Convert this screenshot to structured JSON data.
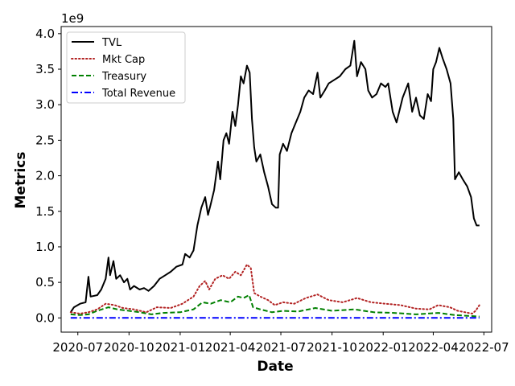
{
  "chart_data": {
    "type": "line",
    "xlabel": "Date",
    "ylabel": "Metrics",
    "y_offset_label": "1e9",
    "xlim": [
      "2020-06-01",
      "2022-07-15"
    ],
    "ylim": [
      -0.2,
      4.1
    ],
    "x_ticks": [
      "2020-07-01",
      "2020-10-01",
      "2021-01-01",
      "2021-04-01",
      "2021-07-01",
      "2021-10-01",
      "2022-01-01",
      "2022-04-01",
      "2022-07-01"
    ],
    "x_tick_labels": [
      "2020-07",
      "2020-10",
      "2021-01",
      "2021-04",
      "2021-07",
      "2021-10",
      "2022-01",
      "2022-04",
      "2022-07"
    ],
    "y_ticks": [
      0.0,
      0.5,
      1.0,
      1.5,
      2.0,
      2.5,
      3.0,
      3.5,
      4.0
    ],
    "y_tick_labels": [
      "0.0",
      "0.5",
      "1.0",
      "1.5",
      "2.0",
      "2.5",
      "3.0",
      "3.5",
      "4.0"
    ],
    "legend_placement": "upper-left",
    "grid": false,
    "series": [
      {
        "name": "TVL",
        "color": "#000000",
        "style": "solid",
        "points": [
          [
            "2020-06-18",
            0.08
          ],
          [
            "2020-06-24",
            0.15
          ],
          [
            "2020-07-05",
            0.2
          ],
          [
            "2020-07-15",
            0.22
          ],
          [
            "2020-07-20",
            0.58
          ],
          [
            "2020-07-24",
            0.3
          ],
          [
            "2020-08-05",
            0.32
          ],
          [
            "2020-08-12",
            0.4
          ],
          [
            "2020-08-20",
            0.55
          ],
          [
            "2020-08-25",
            0.85
          ],
          [
            "2020-08-28",
            0.6
          ],
          [
            "2020-09-03",
            0.8
          ],
          [
            "2020-09-08",
            0.55
          ],
          [
            "2020-09-15",
            0.6
          ],
          [
            "2020-09-22",
            0.5
          ],
          [
            "2020-09-28",
            0.55
          ],
          [
            "2020-10-03",
            0.4
          ],
          [
            "2020-10-10",
            0.45
          ],
          [
            "2020-10-20",
            0.4
          ],
          [
            "2020-10-28",
            0.42
          ],
          [
            "2020-11-05",
            0.38
          ],
          [
            "2020-11-15",
            0.45
          ],
          [
            "2020-11-25",
            0.55
          ],
          [
            "2020-12-05",
            0.6
          ],
          [
            "2020-12-15",
            0.65
          ],
          [
            "2020-12-25",
            0.72
          ],
          [
            "2021-01-05",
            0.75
          ],
          [
            "2021-01-10",
            0.9
          ],
          [
            "2021-01-18",
            0.85
          ],
          [
            "2021-01-25",
            0.95
          ],
          [
            "2021-02-01",
            1.3
          ],
          [
            "2021-02-08",
            1.55
          ],
          [
            "2021-02-15",
            1.7
          ],
          [
            "2021-02-20",
            1.45
          ],
          [
            "2021-02-25",
            1.6
          ],
          [
            "2021-03-03",
            1.8
          ],
          [
            "2021-03-10",
            2.2
          ],
          [
            "2021-03-14",
            1.95
          ],
          [
            "2021-03-20",
            2.5
          ],
          [
            "2021-03-25",
            2.6
          ],
          [
            "2021-03-30",
            2.45
          ],
          [
            "2021-04-05",
            2.9
          ],
          [
            "2021-04-10",
            2.7
          ],
          [
            "2021-04-15",
            3.0
          ],
          [
            "2021-04-20",
            3.4
          ],
          [
            "2021-04-25",
            3.3
          ],
          [
            "2021-05-01",
            3.55
          ],
          [
            "2021-05-06",
            3.45
          ],
          [
            "2021-05-10",
            2.8
          ],
          [
            "2021-05-14",
            2.4
          ],
          [
            "2021-05-18",
            2.2
          ],
          [
            "2021-05-25",
            2.3
          ],
          [
            "2021-06-01",
            2.05
          ],
          [
            "2021-06-08",
            1.85
          ],
          [
            "2021-06-15",
            1.6
          ],
          [
            "2021-06-22",
            1.55
          ],
          [
            "2021-06-26",
            1.55
          ],
          [
            "2021-06-29",
            2.3
          ],
          [
            "2021-07-05",
            2.45
          ],
          [
            "2021-07-12",
            2.35
          ],
          [
            "2021-07-20",
            2.6
          ],
          [
            "2021-07-28",
            2.75
          ],
          [
            "2021-08-05",
            2.9
          ],
          [
            "2021-08-12",
            3.1
          ],
          [
            "2021-08-20",
            3.2
          ],
          [
            "2021-08-28",
            3.15
          ],
          [
            "2021-09-05",
            3.45
          ],
          [
            "2021-09-10",
            3.1
          ],
          [
            "2021-09-18",
            3.2
          ],
          [
            "2021-09-25",
            3.3
          ],
          [
            "2021-10-05",
            3.35
          ],
          [
            "2021-10-15",
            3.4
          ],
          [
            "2021-10-25",
            3.5
          ],
          [
            "2021-11-03",
            3.55
          ],
          [
            "2021-11-10",
            3.9
          ],
          [
            "2021-11-15",
            3.4
          ],
          [
            "2021-11-22",
            3.6
          ],
          [
            "2021-11-30",
            3.5
          ],
          [
            "2021-12-05",
            3.2
          ],
          [
            "2021-12-12",
            3.1
          ],
          [
            "2021-12-20",
            3.15
          ],
          [
            "2021-12-28",
            3.3
          ],
          [
            "2022-01-05",
            3.25
          ],
          [
            "2022-01-10",
            3.3
          ],
          [
            "2022-01-18",
            2.9
          ],
          [
            "2022-01-25",
            2.75
          ],
          [
            "2022-02-05",
            3.1
          ],
          [
            "2022-02-15",
            3.3
          ],
          [
            "2022-02-22",
            2.9
          ],
          [
            "2022-03-01",
            3.1
          ],
          [
            "2022-03-08",
            2.85
          ],
          [
            "2022-03-15",
            2.8
          ],
          [
            "2022-03-22",
            3.15
          ],
          [
            "2022-03-28",
            3.05
          ],
          [
            "2022-04-01",
            3.5
          ],
          [
            "2022-04-06",
            3.6
          ],
          [
            "2022-04-12",
            3.8
          ],
          [
            "2022-04-18",
            3.65
          ],
          [
            "2022-04-25",
            3.5
          ],
          [
            "2022-05-02",
            3.3
          ],
          [
            "2022-05-07",
            2.8
          ],
          [
            "2022-05-10",
            1.95
          ],
          [
            "2022-05-17",
            2.05
          ],
          [
            "2022-05-24",
            1.95
          ],
          [
            "2022-06-01",
            1.85
          ],
          [
            "2022-06-08",
            1.7
          ],
          [
            "2022-06-13",
            1.4
          ],
          [
            "2022-06-18",
            1.3
          ],
          [
            "2022-06-23",
            1.3
          ]
        ]
      },
      {
        "name": "Mkt Cap",
        "color": "#b22222",
        "style": "dotted",
        "points": [
          [
            "2020-06-18",
            0.08
          ],
          [
            "2020-07-05",
            0.06
          ],
          [
            "2020-07-20",
            0.08
          ],
          [
            "2020-08-05",
            0.12
          ],
          [
            "2020-08-20",
            0.2
          ],
          [
            "2020-09-05",
            0.18
          ],
          [
            "2020-09-20",
            0.14
          ],
          [
            "2020-10-10",
            0.12
          ],
          [
            "2020-11-01",
            0.08
          ],
          [
            "2020-11-20",
            0.15
          ],
          [
            "2020-12-15",
            0.14
          ],
          [
            "2021-01-05",
            0.2
          ],
          [
            "2021-01-25",
            0.3
          ],
          [
            "2021-02-05",
            0.45
          ],
          [
            "2021-02-15",
            0.52
          ],
          [
            "2021-02-22",
            0.4
          ],
          [
            "2021-03-05",
            0.55
          ],
          [
            "2021-03-18",
            0.6
          ],
          [
            "2021-03-30",
            0.55
          ],
          [
            "2021-04-10",
            0.65
          ],
          [
            "2021-04-20",
            0.6
          ],
          [
            "2021-05-01",
            0.75
          ],
          [
            "2021-05-08",
            0.7
          ],
          [
            "2021-05-14",
            0.35
          ],
          [
            "2021-05-25",
            0.3
          ],
          [
            "2021-06-08",
            0.25
          ],
          [
            "2021-06-20",
            0.18
          ],
          [
            "2021-07-05",
            0.22
          ],
          [
            "2021-07-25",
            0.2
          ],
          [
            "2021-08-15",
            0.28
          ],
          [
            "2021-09-05",
            0.33
          ],
          [
            "2021-09-25",
            0.25
          ],
          [
            "2021-10-20",
            0.22
          ],
          [
            "2021-11-15",
            0.28
          ],
          [
            "2021-12-10",
            0.22
          ],
          [
            "2022-01-05",
            0.2
          ],
          [
            "2022-02-01",
            0.18
          ],
          [
            "2022-03-01",
            0.13
          ],
          [
            "2022-03-25",
            0.12
          ],
          [
            "2022-04-10",
            0.18
          ],
          [
            "2022-05-01",
            0.15
          ],
          [
            "2022-05-15",
            0.1
          ],
          [
            "2022-06-10",
            0.06
          ],
          [
            "2022-06-16",
            0.1
          ],
          [
            "2022-06-23",
            0.18
          ]
        ]
      },
      {
        "name": "Treasury",
        "color": "#008000",
        "style": "dashed",
        "points": [
          [
            "2020-06-18",
            0.05
          ],
          [
            "2020-07-05",
            0.04
          ],
          [
            "2020-07-20",
            0.05
          ],
          [
            "2020-08-05",
            0.1
          ],
          [
            "2020-08-25",
            0.15
          ],
          [
            "2020-09-10",
            0.12
          ],
          [
            "2020-10-01",
            0.1
          ],
          [
            "2020-10-20",
            0.08
          ],
          [
            "2020-11-10",
            0.05
          ],
          [
            "2020-12-01",
            0.07
          ],
          [
            "2021-01-01",
            0.08
          ],
          [
            "2021-01-25",
            0.12
          ],
          [
            "2021-02-10",
            0.22
          ],
          [
            "2021-02-25",
            0.2
          ],
          [
            "2021-03-15",
            0.25
          ],
          [
            "2021-04-01",
            0.22
          ],
          [
            "2021-04-15",
            0.3
          ],
          [
            "2021-04-25",
            0.28
          ],
          [
            "2021-05-05",
            0.32
          ],
          [
            "2021-05-12",
            0.15
          ],
          [
            "2021-05-25",
            0.12
          ],
          [
            "2021-06-15",
            0.08
          ],
          [
            "2021-07-05",
            0.1
          ],
          [
            "2021-08-01",
            0.09
          ],
          [
            "2021-09-01",
            0.14
          ],
          [
            "2021-10-01",
            0.1
          ],
          [
            "2021-11-10",
            0.12
          ],
          [
            "2021-12-15",
            0.08
          ],
          [
            "2022-01-20",
            0.07
          ],
          [
            "2022-03-01",
            0.05
          ],
          [
            "2022-04-10",
            0.07
          ],
          [
            "2022-05-10",
            0.04
          ],
          [
            "2022-06-23",
            0.02
          ]
        ]
      },
      {
        "name": "Total Revenue",
        "color": "#0000ff",
        "style": "dashdot",
        "points": [
          [
            "2020-06-18",
            0.0
          ],
          [
            "2022-06-23",
            0.0
          ]
        ]
      }
    ]
  }
}
